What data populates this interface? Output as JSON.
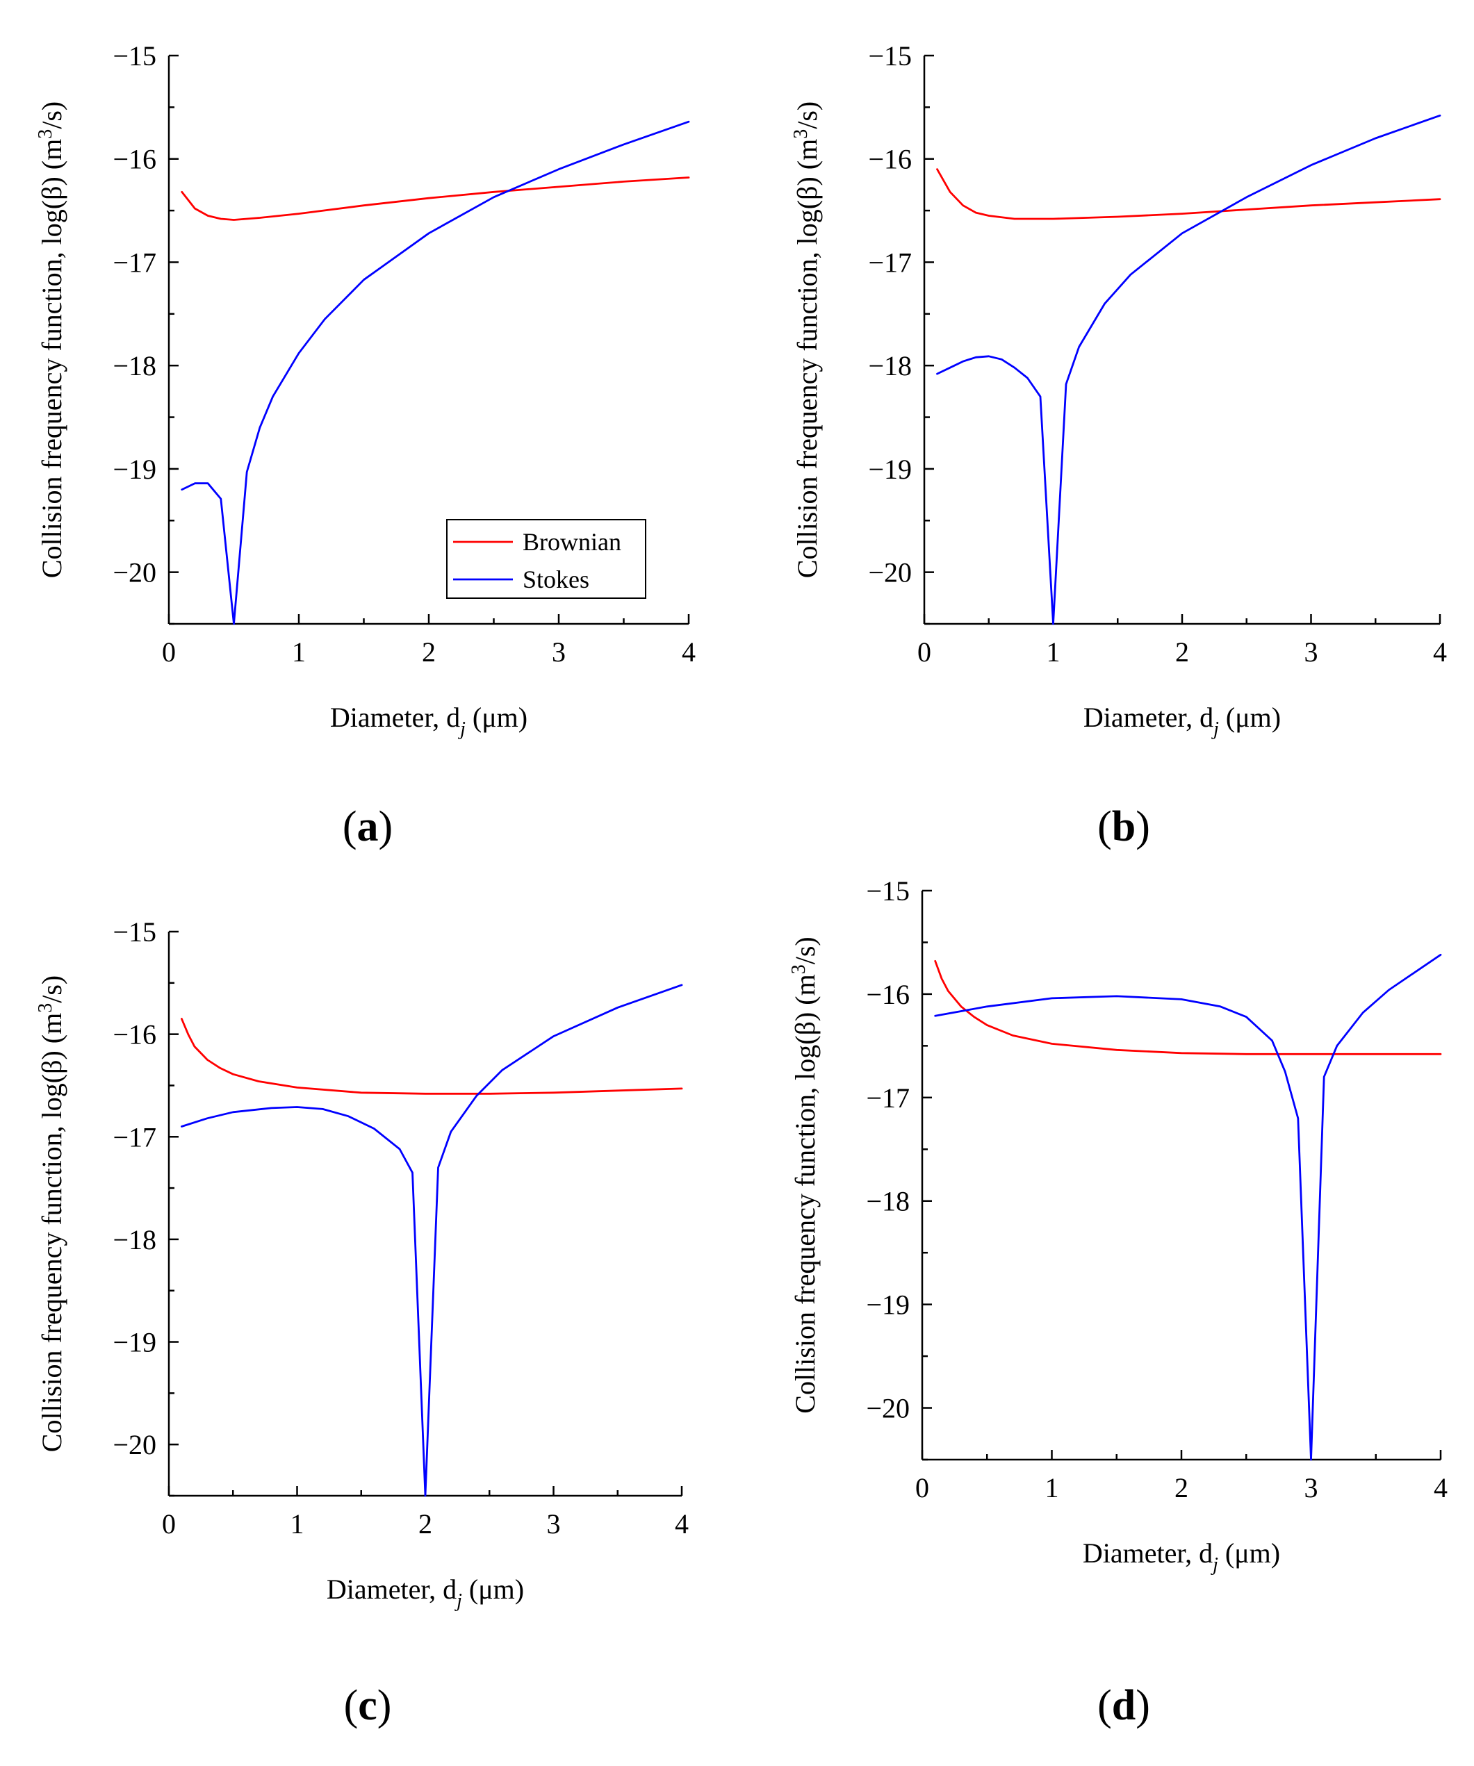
{
  "figure": {
    "panels": [
      "a",
      "b",
      "c",
      "d"
    ]
  },
  "colors": {
    "brownian": "#ff0000",
    "stokes": "#0000ff",
    "axis": "#000000"
  },
  "legend": {
    "entries": [
      "Brownian",
      "Stokes"
    ]
  },
  "chart_data": [
    {
      "panel": "a",
      "type": "line",
      "xlabel_main": "Diameter, d",
      "xlabel_sub": "j",
      "xlabel_unit": " (μm)",
      "ylabel_main": "Collision frequency function, log(β) (m",
      "ylabel_sup": "3",
      "ylabel_end": "/s)",
      "xlim": [
        0,
        4
      ],
      "ylim": [
        -20.5,
        -15
      ],
      "x_ticks": [
        "0",
        "1",
        "2",
        "3",
        "4"
      ],
      "y_ticks": [
        "−20",
        "−19",
        "−18",
        "−17",
        "−16",
        "−15"
      ],
      "legend_position": "lower-right",
      "series": [
        {
          "name": "Brownian",
          "x": [
            0.1,
            0.2,
            0.3,
            0.4,
            0.5,
            0.7,
            1.0,
            1.5,
            2.0,
            2.5,
            3.0,
            3.5,
            4.0
          ],
          "y": [
            -16.32,
            -16.48,
            -16.55,
            -16.58,
            -16.59,
            -16.57,
            -16.53,
            -16.45,
            -16.38,
            -16.32,
            -16.27,
            -16.22,
            -16.18
          ]
        },
        {
          "name": "Stokes",
          "x": [
            0.1,
            0.2,
            0.3,
            0.4,
            0.5,
            0.6,
            0.7,
            0.8,
            1.0,
            1.2,
            1.5,
            2.0,
            2.5,
            3.0,
            3.5,
            4.0
          ],
          "y": [
            -19.2,
            -19.14,
            -19.14,
            -19.29,
            -20.5,
            -19.03,
            -18.6,
            -18.3,
            -17.88,
            -17.55,
            -17.17,
            -16.72,
            -16.37,
            -16.1,
            -15.86,
            -15.64
          ]
        }
      ]
    },
    {
      "panel": "b",
      "type": "line",
      "xlabel_main": "Diameter, d",
      "xlabel_sub": "j",
      "xlabel_unit": " (μm)",
      "ylabel_main": "Collision frequency function, log(β) (m",
      "ylabel_sup": "3",
      "ylabel_end": "/s)",
      "xlim": [
        0,
        4
      ],
      "ylim": [
        -20.5,
        -15
      ],
      "x_ticks": [
        "0",
        "1",
        "2",
        "3",
        "4"
      ],
      "y_ticks": [
        "−20",
        "−19",
        "−18",
        "−17",
        "−16",
        "−15"
      ],
      "series": [
        {
          "name": "Brownian",
          "x": [
            0.1,
            0.2,
            0.3,
            0.4,
            0.5,
            0.7,
            1.0,
            1.5,
            2.0,
            2.5,
            3.0,
            3.5,
            4.0
          ],
          "y": [
            -16.1,
            -16.32,
            -16.45,
            -16.52,
            -16.55,
            -16.58,
            -16.58,
            -16.56,
            -16.53,
            -16.49,
            -16.45,
            -16.42,
            -16.39
          ]
        },
        {
          "name": "Stokes",
          "x": [
            0.1,
            0.2,
            0.3,
            0.4,
            0.5,
            0.6,
            0.7,
            0.8,
            0.9,
            1.0,
            1.1,
            1.2,
            1.4,
            1.6,
            2.0,
            2.5,
            3.0,
            3.5,
            4.0
          ],
          "y": [
            -18.08,
            -18.02,
            -17.96,
            -17.92,
            -17.91,
            -17.94,
            -18.02,
            -18.12,
            -18.3,
            -20.5,
            -18.18,
            -17.82,
            -17.4,
            -17.12,
            -16.72,
            -16.37,
            -16.06,
            -15.8,
            -15.58
          ]
        }
      ]
    },
    {
      "panel": "c",
      "type": "line",
      "xlabel_main": "Diameter, d",
      "xlabel_sub": "j",
      "xlabel_unit": " (μm)",
      "ylabel_main": "Collision frequency function, log(β) (m",
      "ylabel_sup": "3",
      "ylabel_end": "/s)",
      "xlim": [
        0,
        4
      ],
      "ylim": [
        -20.5,
        -15
      ],
      "x_ticks": [
        "0",
        "1",
        "2",
        "3",
        "4"
      ],
      "y_ticks": [
        "−20",
        "−19",
        "−18",
        "−17",
        "−16",
        "−15"
      ],
      "series": [
        {
          "name": "Brownian",
          "x": [
            0.1,
            0.15,
            0.2,
            0.3,
            0.4,
            0.5,
            0.7,
            1.0,
            1.5,
            2.0,
            2.5,
            3.0,
            3.5,
            4.0
          ],
          "y": [
            -15.85,
            -16.0,
            -16.12,
            -16.25,
            -16.33,
            -16.39,
            -16.46,
            -16.52,
            -16.57,
            -16.58,
            -16.58,
            -16.57,
            -16.55,
            -16.53
          ]
        },
        {
          "name": "Stokes",
          "x": [
            0.1,
            0.3,
            0.5,
            0.8,
            1.0,
            1.2,
            1.4,
            1.6,
            1.8,
            1.9,
            2.0,
            2.1,
            2.2,
            2.4,
            2.6,
            3.0,
            3.5,
            4.0
          ],
          "y": [
            -16.9,
            -16.82,
            -16.76,
            -16.72,
            -16.71,
            -16.73,
            -16.8,
            -16.92,
            -17.12,
            -17.35,
            -20.5,
            -17.3,
            -16.95,
            -16.6,
            -16.35,
            -16.02,
            -15.74,
            -15.52
          ]
        }
      ]
    },
    {
      "panel": "d",
      "type": "line",
      "xlabel_main": "Diameter, d",
      "xlabel_sub": "j",
      "xlabel_unit": " (μm)",
      "ylabel_main": "Collision frequency function, log(β) (m",
      "ylabel_sup": "3",
      "ylabel_end": "/s)",
      "xlim": [
        0,
        4
      ],
      "ylim": [
        -20.5,
        -15
      ],
      "x_ticks": [
        "0",
        "1",
        "2",
        "3",
        "4"
      ],
      "y_ticks": [
        "−20",
        "−19",
        "−18",
        "−17",
        "−16",
        "−15"
      ],
      "series": [
        {
          "name": "Brownian",
          "x": [
            0.1,
            0.15,
            0.2,
            0.3,
            0.4,
            0.5,
            0.7,
            1.0,
            1.5,
            2.0,
            2.5,
            3.0,
            3.5,
            4.0
          ],
          "y": [
            -15.68,
            -15.85,
            -15.97,
            -16.12,
            -16.22,
            -16.3,
            -16.4,
            -16.48,
            -16.54,
            -16.57,
            -16.58,
            -16.58,
            -16.58,
            -16.58
          ]
        },
        {
          "name": "Stokes",
          "x": [
            0.1,
            0.5,
            1.0,
            1.5,
            2.0,
            2.3,
            2.5,
            2.7,
            2.8,
            2.9,
            3.0,
            3.1,
            3.2,
            3.4,
            3.6,
            4.0
          ],
          "y": [
            -16.21,
            -16.12,
            -16.04,
            -16.02,
            -16.05,
            -16.12,
            -16.22,
            -16.45,
            -16.75,
            -17.2,
            -20.5,
            -16.8,
            -16.5,
            -16.18,
            -15.96,
            -15.62
          ]
        }
      ]
    }
  ]
}
